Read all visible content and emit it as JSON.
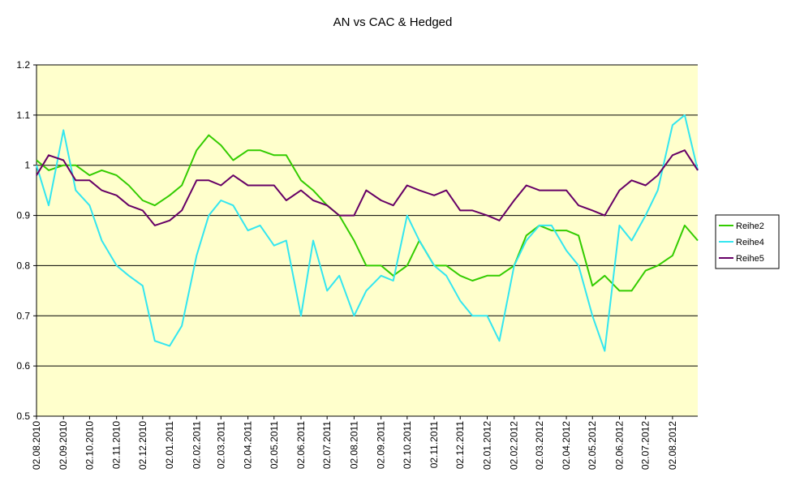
{
  "chart_data": {
    "type": "line",
    "title": "AN vs CAC & Hedged",
    "x": [
      "02.08.2010",
      "16.08.2010",
      "02.09.2010",
      "16.09.2010",
      "02.10.2010",
      "16.10.2010",
      "02.11.2010",
      "16.11.2010",
      "02.12.2010",
      "16.12.2010",
      "02.01.2011",
      "16.01.2011",
      "02.02.2011",
      "16.02.2011",
      "02.03.2011",
      "16.03.2011",
      "02.04.2011",
      "16.04.2011",
      "02.05.2011",
      "16.05.2011",
      "02.06.2011",
      "16.06.2011",
      "02.07.2011",
      "16.07.2011",
      "02.08.2011",
      "16.08.2011",
      "02.09.2011",
      "16.09.2011",
      "02.10.2011",
      "16.10.2011",
      "02.11.2011",
      "16.11.2011",
      "02.12.2011",
      "16.12.2011",
      "02.01.2012",
      "16.01.2012",
      "02.02.2012",
      "16.02.2012",
      "02.03.2012",
      "16.03.2012",
      "02.04.2012",
      "16.04.2012",
      "02.05.2012",
      "16.05.2012",
      "02.06.2012",
      "16.06.2012",
      "02.07.2012",
      "16.07.2012",
      "02.08.2012",
      "16.08.2012",
      "31.08.2012"
    ],
    "series": [
      {
        "name": "Reihe2",
        "color": "#33cc00",
        "values": [
          1.01,
          0.99,
          1.0,
          1.0,
          0.98,
          0.99,
          0.98,
          0.96,
          0.93,
          0.92,
          0.94,
          0.96,
          1.03,
          1.06,
          1.04,
          1.01,
          1.03,
          1.03,
          1.02,
          1.02,
          0.97,
          0.95,
          0.92,
          0.9,
          0.85,
          0.8,
          0.8,
          0.78,
          0.8,
          0.85,
          0.8,
          0.8,
          0.78,
          0.77,
          0.78,
          0.78,
          0.8,
          0.86,
          0.88,
          0.87,
          0.87,
          0.86,
          0.76,
          0.78,
          0.75,
          0.75,
          0.79,
          0.8,
          0.82,
          0.88,
          0.85
        ]
      },
      {
        "name": "Reihe4",
        "color": "#33e6f0",
        "values": [
          1.0,
          0.92,
          1.07,
          0.95,
          0.92,
          0.85,
          0.8,
          0.78,
          0.76,
          0.65,
          0.64,
          0.68,
          0.82,
          0.9,
          0.93,
          0.92,
          0.87,
          0.88,
          0.84,
          0.85,
          0.7,
          0.85,
          0.75,
          0.78,
          0.7,
          0.75,
          0.78,
          0.77,
          0.9,
          0.85,
          0.8,
          0.78,
          0.73,
          0.7,
          0.7,
          0.65,
          0.8,
          0.85,
          0.88,
          0.88,
          0.83,
          0.8,
          0.7,
          0.63,
          0.88,
          0.85,
          0.9,
          0.95,
          1.08,
          1.1,
          0.99
        ]
      },
      {
        "name": "Reihe5",
        "color": "#660066",
        "values": [
          0.98,
          1.02,
          1.01,
          0.97,
          0.97,
          0.95,
          0.94,
          0.92,
          0.91,
          0.88,
          0.89,
          0.91,
          0.97,
          0.97,
          0.96,
          0.98,
          0.96,
          0.96,
          0.96,
          0.93,
          0.95,
          0.93,
          0.92,
          0.9,
          0.9,
          0.95,
          0.93,
          0.92,
          0.96,
          0.95,
          0.94,
          0.95,
          0.91,
          0.91,
          0.9,
          0.89,
          0.93,
          0.96,
          0.95,
          0.95,
          0.95,
          0.92,
          0.91,
          0.9,
          0.95,
          0.97,
          0.96,
          0.98,
          1.02,
          1.03,
          0.99
        ]
      }
    ],
    "xlim": [
      "02.08.2010",
      "31.08.2012"
    ],
    "xticks": [
      "02.08.2010",
      "02.09.2010",
      "02.10.2010",
      "02.11.2010",
      "02.12.2010",
      "02.01.2011",
      "02.02.2011",
      "02.03.2011",
      "02.04.2011",
      "02.05.2011",
      "02.06.2011",
      "02.07.2011",
      "02.08.2011",
      "02.09.2011",
      "02.10.2011",
      "02.11.2011",
      "02.12.2011",
      "02.01.2012",
      "02.02.2012",
      "02.03.2012",
      "02.04.2012",
      "02.05.2012",
      "02.06.2012",
      "02.07.2012",
      "02.08.2012"
    ],
    "ylim": [
      0.5,
      1.2
    ],
    "yticks": [
      0.5,
      0.6,
      0.7,
      0.8,
      0.9,
      1,
      1.1,
      1.2
    ],
    "grid": true,
    "legend": "right",
    "background": "#ffffcc"
  }
}
